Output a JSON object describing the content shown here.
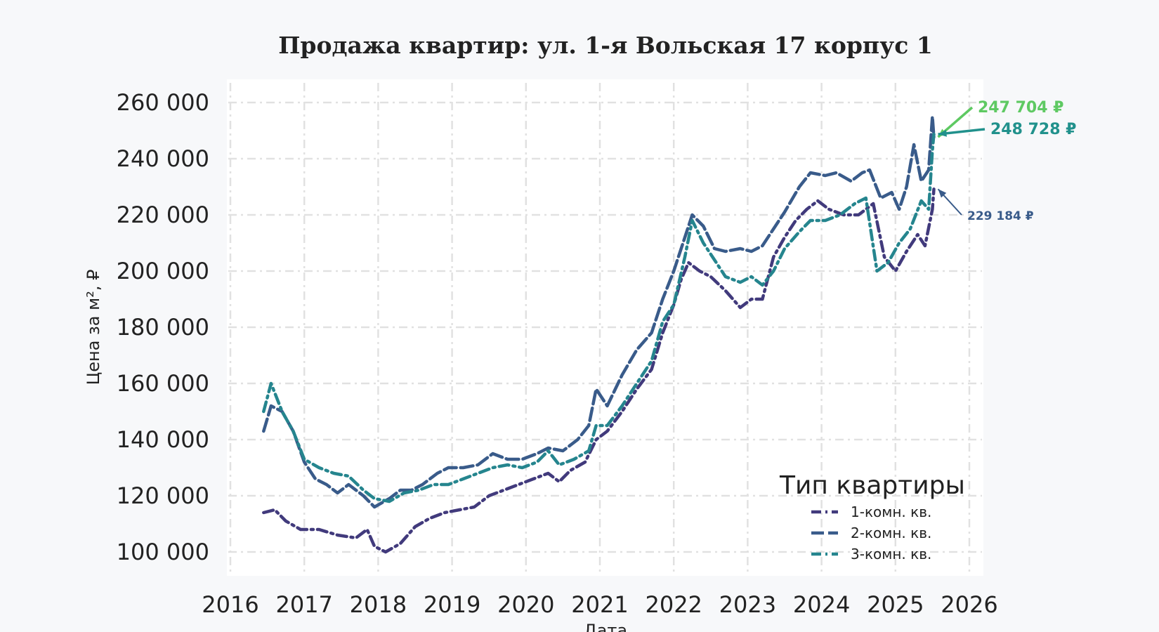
{
  "chart_data": {
    "type": "line",
    "title": "Продажа квартир: ул. 1-я Вольская 17 корпус 1",
    "xlabel": "Дата",
    "ylabel": "Цена за м², ₽",
    "xlim": [
      2016,
      2026
    ],
    "ylim": [
      95000,
      267000
    ],
    "x_ticks": [
      "2016",
      "2017",
      "2018",
      "2019",
      "2020",
      "2021",
      "2022",
      "2023",
      "2024",
      "2025",
      "2026"
    ],
    "y_ticks": [
      "100 000",
      "120 000",
      "140 000",
      "160 000",
      "180 000",
      "200 000",
      "220 000",
      "240 000",
      "260 000"
    ],
    "grid": true,
    "legend": {
      "title": "Тип квартиры",
      "position": "bottom-right"
    },
    "series": [
      {
        "name": "1-комн. кв.",
        "color": "#413a7c",
        "dash": "dashdot",
        "points": [
          [
            2016.45,
            114000
          ],
          [
            2016.6,
            115000
          ],
          [
            2016.75,
            111000
          ],
          [
            2016.95,
            108000
          ],
          [
            2017.2,
            108000
          ],
          [
            2017.45,
            106000
          ],
          [
            2017.7,
            105000
          ],
          [
            2017.85,
            108000
          ],
          [
            2017.95,
            102000
          ],
          [
            2018.1,
            100000
          ],
          [
            2018.3,
            103000
          ],
          [
            2018.5,
            109000
          ],
          [
            2018.7,
            112000
          ],
          [
            2018.9,
            114000
          ],
          [
            2019.1,
            115000
          ],
          [
            2019.3,
            116000
          ],
          [
            2019.5,
            120000
          ],
          [
            2019.7,
            122000
          ],
          [
            2019.9,
            124000
          ],
          [
            2020.1,
            126000
          ],
          [
            2020.3,
            128000
          ],
          [
            2020.45,
            125000
          ],
          [
            2020.6,
            129000
          ],
          [
            2020.8,
            132000
          ],
          [
            2020.95,
            140000
          ],
          [
            2021.1,
            143000
          ],
          [
            2021.3,
            150000
          ],
          [
            2021.5,
            158000
          ],
          [
            2021.7,
            165000
          ],
          [
            2021.85,
            178000
          ],
          [
            2022.0,
            188000
          ],
          [
            2022.1,
            197000
          ],
          [
            2022.2,
            203000
          ],
          [
            2022.35,
            200000
          ],
          [
            2022.5,
            198000
          ],
          [
            2022.7,
            193000
          ],
          [
            2022.9,
            187000
          ],
          [
            2023.05,
            190000
          ],
          [
            2023.2,
            190000
          ],
          [
            2023.35,
            205000
          ],
          [
            2023.5,
            212000
          ],
          [
            2023.65,
            218000
          ],
          [
            2023.8,
            222000
          ],
          [
            2023.95,
            225000
          ],
          [
            2024.1,
            222000
          ],
          [
            2024.3,
            220000
          ],
          [
            2024.5,
            220000
          ],
          [
            2024.7,
            224000
          ],
          [
            2024.85,
            205000
          ],
          [
            2025.0,
            200000
          ],
          [
            2025.15,
            207000
          ],
          [
            2025.3,
            213000
          ],
          [
            2025.4,
            209000
          ],
          [
            2025.5,
            222000
          ],
          [
            2025.52,
            229184
          ]
        ]
      },
      {
        "name": "2-комн. кв.",
        "color": "#395b8a",
        "dash": "dashed",
        "points": [
          [
            2016.45,
            143000
          ],
          [
            2016.55,
            152000
          ],
          [
            2016.7,
            150000
          ],
          [
            2016.85,
            143000
          ],
          [
            2017.0,
            132000
          ],
          [
            2017.15,
            126000
          ],
          [
            2017.3,
            124000
          ],
          [
            2017.45,
            121000
          ],
          [
            2017.6,
            124000
          ],
          [
            2017.8,
            120000
          ],
          [
            2017.95,
            116000
          ],
          [
            2018.15,
            119000
          ],
          [
            2018.3,
            122000
          ],
          [
            2018.45,
            122000
          ],
          [
            2018.6,
            124000
          ],
          [
            2018.8,
            128000
          ],
          [
            2018.95,
            130000
          ],
          [
            2019.15,
            130000
          ],
          [
            2019.35,
            131000
          ],
          [
            2019.55,
            135000
          ],
          [
            2019.75,
            133000
          ],
          [
            2019.95,
            133000
          ],
          [
            2020.15,
            135000
          ],
          [
            2020.3,
            137000
          ],
          [
            2020.5,
            136000
          ],
          [
            2020.7,
            140000
          ],
          [
            2020.85,
            145000
          ],
          [
            2020.95,
            158000
          ],
          [
            2021.1,
            152000
          ],
          [
            2021.3,
            163000
          ],
          [
            2021.5,
            172000
          ],
          [
            2021.7,
            178000
          ],
          [
            2021.85,
            190000
          ],
          [
            2022.0,
            200000
          ],
          [
            2022.15,
            212000
          ],
          [
            2022.25,
            220000
          ],
          [
            2022.4,
            216000
          ],
          [
            2022.55,
            208000
          ],
          [
            2022.7,
            207000
          ],
          [
            2022.9,
            208000
          ],
          [
            2023.05,
            207000
          ],
          [
            2023.2,
            209000
          ],
          [
            2023.35,
            215000
          ],
          [
            2023.5,
            221000
          ],
          [
            2023.7,
            230000
          ],
          [
            2023.85,
            235000
          ],
          [
            2024.05,
            234000
          ],
          [
            2024.2,
            235000
          ],
          [
            2024.4,
            232000
          ],
          [
            2024.55,
            235000
          ],
          [
            2024.65,
            236000
          ],
          [
            2024.8,
            226000
          ],
          [
            2024.95,
            228000
          ],
          [
            2025.05,
            222000
          ],
          [
            2025.15,
            230000
          ],
          [
            2025.25,
            245000
          ],
          [
            2025.35,
            232000
          ],
          [
            2025.45,
            236000
          ],
          [
            2025.5,
            255000
          ],
          [
            2025.52,
            247704
          ]
        ]
      },
      {
        "name": "3-комн. кв.",
        "color": "#25858e",
        "dash": "dashdot",
        "points": [
          [
            2016.45,
            150000
          ],
          [
            2016.55,
            160000
          ],
          [
            2016.7,
            150000
          ],
          [
            2016.85,
            143000
          ],
          [
            2017.0,
            133000
          ],
          [
            2017.2,
            130000
          ],
          [
            2017.4,
            128000
          ],
          [
            2017.6,
            127000
          ],
          [
            2017.8,
            122000
          ],
          [
            2017.95,
            119000
          ],
          [
            2018.15,
            118000
          ],
          [
            2018.35,
            121000
          ],
          [
            2018.55,
            122000
          ],
          [
            2018.75,
            124000
          ],
          [
            2018.95,
            124000
          ],
          [
            2019.15,
            126000
          ],
          [
            2019.35,
            128000
          ],
          [
            2019.55,
            130000
          ],
          [
            2019.75,
            131000
          ],
          [
            2019.95,
            130000
          ],
          [
            2020.15,
            132000
          ],
          [
            2020.3,
            136000
          ],
          [
            2020.45,
            131000
          ],
          [
            2020.65,
            133000
          ],
          [
            2020.85,
            136000
          ],
          [
            2020.95,
            145000
          ],
          [
            2021.1,
            145000
          ],
          [
            2021.3,
            152000
          ],
          [
            2021.5,
            160000
          ],
          [
            2021.7,
            168000
          ],
          [
            2021.85,
            182000
          ],
          [
            2022.0,
            188000
          ],
          [
            2022.15,
            205000
          ],
          [
            2022.25,
            218000
          ],
          [
            2022.4,
            210000
          ],
          [
            2022.55,
            204000
          ],
          [
            2022.7,
            198000
          ],
          [
            2022.9,
            196000
          ],
          [
            2023.05,
            198000
          ],
          [
            2023.2,
            195000
          ],
          [
            2023.35,
            200000
          ],
          [
            2023.5,
            208000
          ],
          [
            2023.7,
            214000
          ],
          [
            2023.85,
            218000
          ],
          [
            2024.05,
            218000
          ],
          [
            2024.25,
            220000
          ],
          [
            2024.45,
            224000
          ],
          [
            2024.6,
            226000
          ],
          [
            2024.75,
            200000
          ],
          [
            2024.9,
            203000
          ],
          [
            2025.05,
            210000
          ],
          [
            2025.2,
            215000
          ],
          [
            2025.35,
            225000
          ],
          [
            2025.45,
            222000
          ],
          [
            2025.5,
            243000
          ],
          [
            2025.52,
            248728
          ]
        ]
      }
    ],
    "annotations": [
      {
        "text": "247 704 ₽",
        "color": "#5ec962",
        "series": "2-комн. кв.",
        "x": 2025.52,
        "y": 247704
      },
      {
        "text": "248 728 ₽",
        "color": "#21918c",
        "series": "3-комн. кв.",
        "x": 2025.52,
        "y": 248728
      },
      {
        "text": "229 184 ₽",
        "color": "#395b8a",
        "series": "1-комн. кв.",
        "x": 2025.52,
        "y": 229184
      }
    ]
  }
}
